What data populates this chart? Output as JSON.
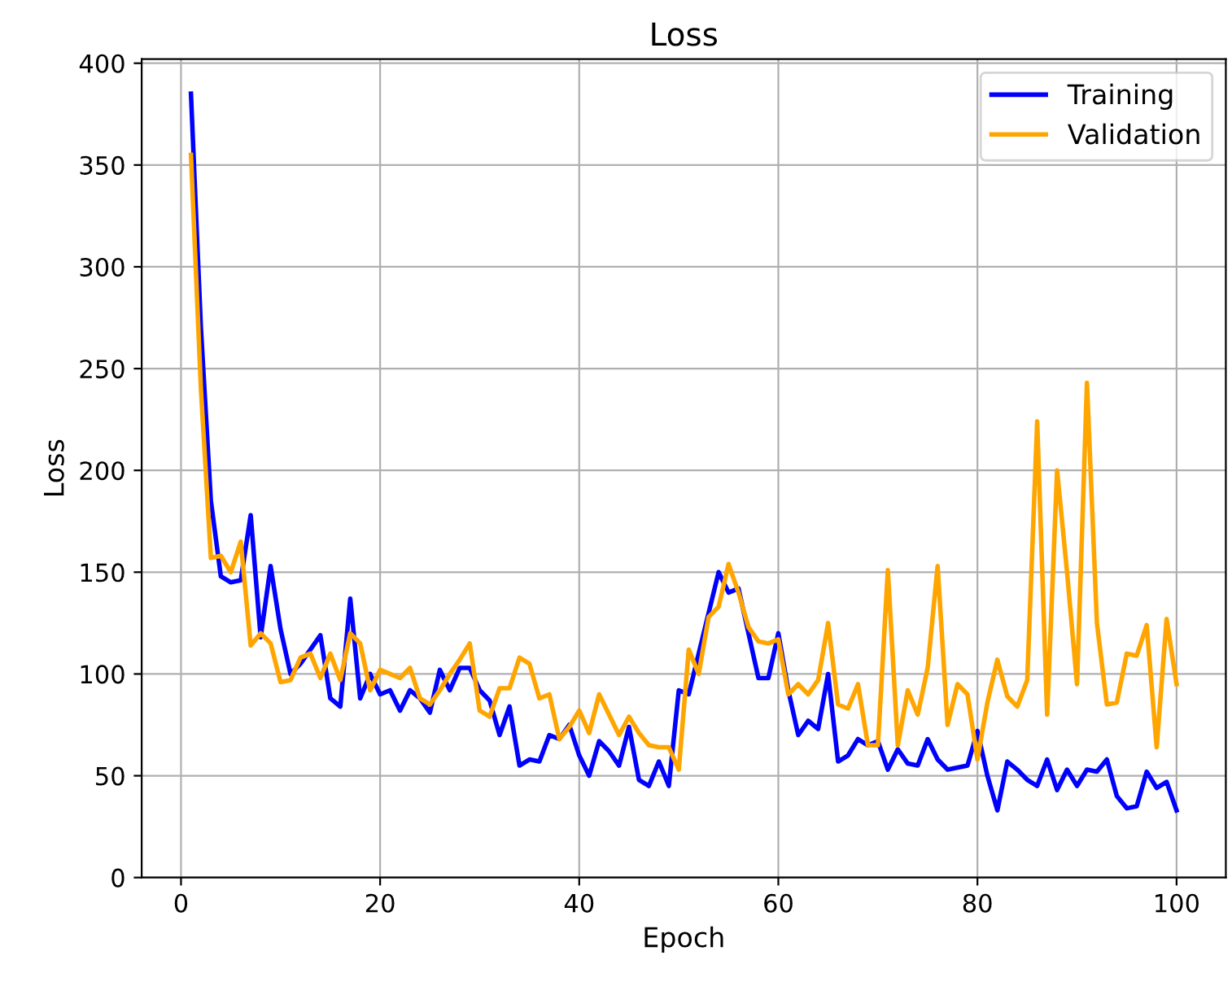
{
  "chart_data": {
    "type": "line",
    "title": "Loss",
    "xlabel": "Epoch",
    "ylabel": "Loss",
    "x": [
      1,
      2,
      3,
      4,
      5,
      6,
      7,
      8,
      9,
      10,
      11,
      12,
      13,
      14,
      15,
      16,
      17,
      18,
      19,
      20,
      21,
      22,
      23,
      24,
      25,
      26,
      27,
      28,
      29,
      30,
      31,
      32,
      33,
      34,
      35,
      36,
      37,
      38,
      39,
      40,
      41,
      42,
      43,
      44,
      45,
      46,
      47,
      48,
      49,
      50,
      51,
      52,
      53,
      54,
      55,
      56,
      57,
      58,
      59,
      60,
      61,
      62,
      63,
      64,
      65,
      66,
      67,
      68,
      69,
      70,
      71,
      72,
      73,
      74,
      75,
      76,
      77,
      78,
      79,
      80,
      81,
      82,
      83,
      84,
      85,
      86,
      87,
      88,
      89,
      90,
      91,
      92,
      93,
      94,
      95,
      96,
      97,
      98,
      99,
      100
    ],
    "series": [
      {
        "name": "Training",
        "color": "#0000ff",
        "values": [
          385,
          270,
          185,
          148,
          145,
          146,
          178,
          118,
          153,
          122,
          100,
          105,
          112,
          119,
          88,
          84,
          137,
          88,
          100,
          90,
          92,
          82,
          92,
          88,
          81,
          102,
          92,
          103,
          103,
          92,
          87,
          70,
          84,
          55,
          58,
          57,
          70,
          68,
          75,
          60,
          50,
          67,
          62,
          55,
          74,
          48,
          45,
          57,
          45,
          92,
          90,
          110,
          130,
          150,
          140,
          142,
          120,
          98,
          98,
          120,
          92,
          70,
          77,
          73,
          100,
          57,
          60,
          68,
          65,
          67,
          53,
          63,
          56,
          55,
          68,
          58,
          53,
          54,
          55,
          72,
          50,
          33,
          57,
          53,
          48,
          45,
          58,
          43,
          53,
          45,
          53,
          52,
          58,
          40,
          34,
          35,
          52,
          44,
          47,
          33
        ]
      },
      {
        "name": "Validation",
        "color": "#ffa500",
        "values": [
          355,
          240,
          157,
          158,
          150,
          165,
          114,
          120,
          115,
          96,
          97,
          108,
          110,
          98,
          110,
          97,
          120,
          115,
          92,
          102,
          100,
          98,
          103,
          88,
          85,
          92,
          100,
          107,
          115,
          82,
          79,
          93,
          93,
          108,
          105,
          88,
          90,
          68,
          74,
          82,
          71,
          90,
          80,
          70,
          79,
          71,
          65,
          64,
          64,
          53,
          112,
          100,
          128,
          133,
          154,
          140,
          123,
          116,
          115,
          117,
          90,
          95,
          90,
          97,
          125,
          85,
          83,
          95,
          65,
          65,
          151,
          65,
          92,
          80,
          103,
          153,
          75,
          95,
          90,
          58,
          86,
          107,
          89,
          84,
          97,
          224,
          80,
          200,
          150,
          95,
          243,
          125,
          85,
          86,
          110,
          109,
          124,
          64,
          127,
          95
        ]
      }
    ],
    "xlim": [
      -3.95,
      104.95
    ],
    "ylim": [
      0,
      402
    ],
    "xticks": [
      0,
      20,
      40,
      60,
      80,
      100
    ],
    "yticks": [
      0,
      50,
      100,
      150,
      200,
      250,
      300,
      350,
      400
    ],
    "grid": true,
    "legend": "top right",
    "line_style": "solid",
    "marker": "none"
  }
}
